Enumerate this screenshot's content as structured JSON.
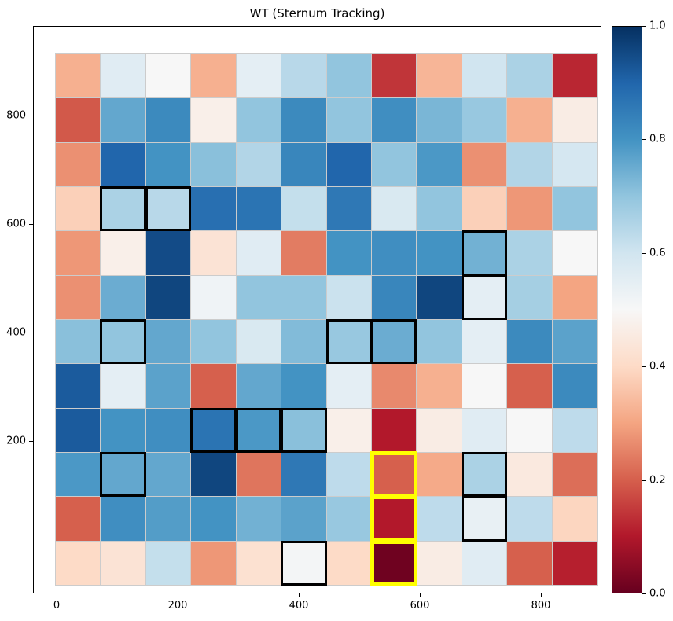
{
  "title": "WT (Sternum Tracking)",
  "axes": {
    "x_tick_labels": [
      "0",
      "200",
      "400",
      "600",
      "800"
    ],
    "y_tick_labels": [
      "800",
      "600",
      "400",
      "200"
    ]
  },
  "colorbar": {
    "tick_labels": [
      "1.0",
      "0.8",
      "0.6",
      "0.4",
      "0.2",
      "0.0"
    ]
  },
  "chart_data": {
    "type": "heatmap",
    "title": "WT (Sternum Tracking)",
    "grid_size": [
      12,
      12
    ],
    "colormap": "RdBu",
    "vmin": 0.0,
    "vmax": 1.0,
    "x_axis_ticks": [
      0,
      200,
      400,
      600,
      800
    ],
    "y_axis_ticks": [
      800,
      600,
      400,
      200
    ],
    "values": [
      [
        0.32,
        0.56,
        0.5,
        0.32,
        0.55,
        0.64,
        0.7,
        0.14,
        0.33,
        0.6,
        0.66,
        0.12
      ],
      [
        0.19,
        0.76,
        0.82,
        0.47,
        0.7,
        0.82,
        0.7,
        0.81,
        0.73,
        0.69,
        0.32,
        0.46
      ],
      [
        0.27,
        0.9,
        0.8,
        0.71,
        0.65,
        0.83,
        0.9,
        0.7,
        0.79,
        0.27,
        0.65,
        0.59
      ],
      [
        0.38,
        0.66,
        0.64,
        0.88,
        0.87,
        0.62,
        0.86,
        0.58,
        0.7,
        0.38,
        0.28,
        0.7
      ],
      [
        0.28,
        0.47,
        0.95,
        0.43,
        0.56,
        0.24,
        0.8,
        0.81,
        0.8,
        0.74,
        0.66,
        0.5
      ],
      [
        0.27,
        0.75,
        0.96,
        0.52,
        0.7,
        0.7,
        0.61,
        0.83,
        0.96,
        0.55,
        0.67,
        0.3
      ],
      [
        0.71,
        0.7,
        0.76,
        0.7,
        0.58,
        0.72,
        0.69,
        0.75,
        0.7,
        0.55,
        0.82,
        0.77
      ],
      [
        0.92,
        0.55,
        0.77,
        0.2,
        0.76,
        0.8,
        0.55,
        0.26,
        0.32,
        0.5,
        0.2,
        0.82
      ],
      [
        0.92,
        0.8,
        0.81,
        0.87,
        0.79,
        0.71,
        0.47,
        0.1,
        0.46,
        0.56,
        0.5,
        0.63
      ],
      [
        0.79,
        0.76,
        0.76,
        0.96,
        0.23,
        0.86,
        0.63,
        0.2,
        0.31,
        0.66,
        0.45,
        0.22
      ],
      [
        0.2,
        0.81,
        0.78,
        0.8,
        0.74,
        0.77,
        0.69,
        0.1,
        0.63,
        0.54,
        0.63,
        0.39
      ],
      [
        0.4,
        0.43,
        0.62,
        0.28,
        0.42,
        0.51,
        0.4,
        0.01,
        0.46,
        0.56,
        0.2,
        0.11
      ]
    ],
    "highlighted_cells_black": [
      [
        3,
        1
      ],
      [
        3,
        2
      ],
      [
        4,
        9
      ],
      [
        5,
        9
      ],
      [
        6,
        1
      ],
      [
        6,
        6
      ],
      [
        6,
        7
      ],
      [
        8,
        3
      ],
      [
        8,
        4
      ],
      [
        8,
        5
      ],
      [
        9,
        1
      ],
      [
        9,
        9
      ],
      [
        10,
        9
      ],
      [
        11,
        5
      ]
    ],
    "highlighted_cells_yellow": [
      [
        9,
        7
      ],
      [
        10,
        7
      ],
      [
        11,
        7
      ]
    ],
    "highlight_black_color": "#000000",
    "highlight_yellow_color": "#ffff00",
    "colormap_stops": [
      [
        103,
        0,
        31
      ],
      [
        178,
        24,
        43
      ],
      [
        214,
        96,
        77
      ],
      [
        244,
        165,
        130
      ],
      [
        253,
        219,
        199
      ],
      [
        247,
        247,
        247
      ],
      [
        209,
        229,
        240
      ],
      [
        146,
        197,
        222
      ],
      [
        67,
        147,
        195
      ],
      [
        33,
        102,
        172
      ],
      [
        5,
        48,
        97
      ]
    ],
    "legend_position": "right-colorbar",
    "grid": false
  }
}
